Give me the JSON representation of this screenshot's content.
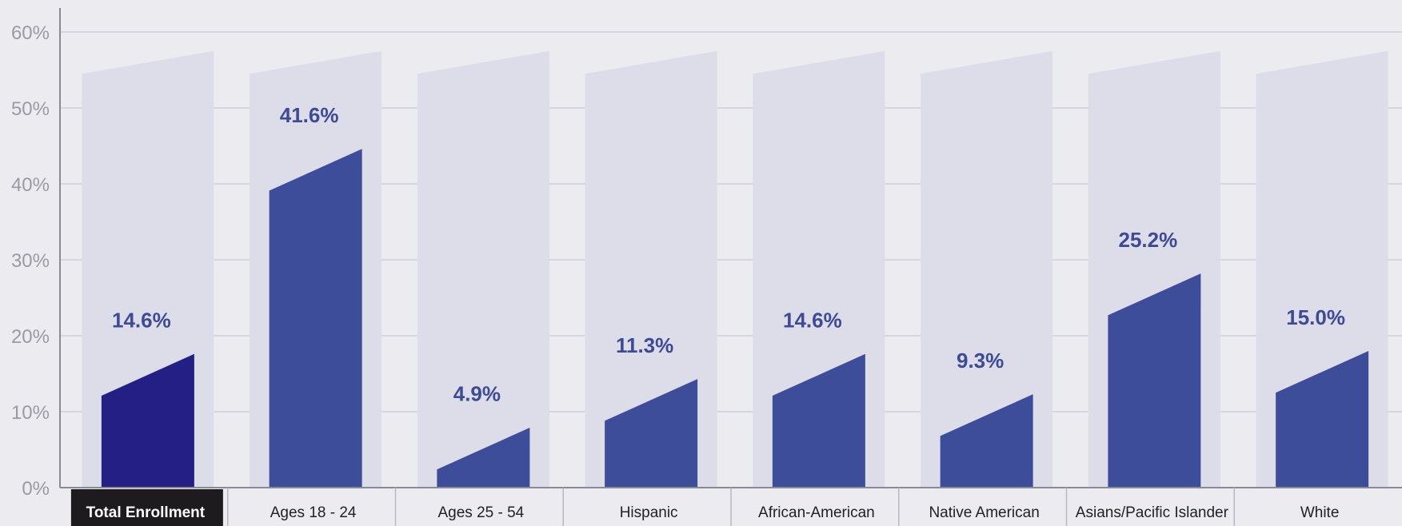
{
  "chart_data": {
    "type": "bar",
    "categories": [
      "Total Enrollment",
      "Ages 18 - 24",
      "Ages 25 - 54",
      "Hispanic",
      "African-American",
      "Native American",
      "Asians/Pacific Islander",
      "White"
    ],
    "values": [
      14.6,
      41.6,
      4.9,
      11.3,
      14.6,
      9.3,
      25.2,
      15.0
    ],
    "value_labels": [
      "14.6%",
      "41.6%",
      "4.9%",
      "11.3%",
      "14.6%",
      "9.3%",
      "25.2%",
      "15.0%"
    ],
    "yticks": [
      "0%",
      "10%",
      "20%",
      "30%",
      "40%",
      "50%",
      "60%"
    ],
    "ylim": [
      0,
      60
    ],
    "grid": true,
    "highlight_category": "Total Enrollment",
    "title": "",
    "xlabel": "",
    "ylabel": ""
  },
  "colors": {
    "background": "#ececf0",
    "track": "#dddde9",
    "bar": "#3e4d9a",
    "bar_highlight": "#241f84",
    "value_label": "#3e4a96",
    "axis_text": "#9a9aa6",
    "grid": "#cfcfd8",
    "highlight_label_bg": "#1e1b1e"
  }
}
